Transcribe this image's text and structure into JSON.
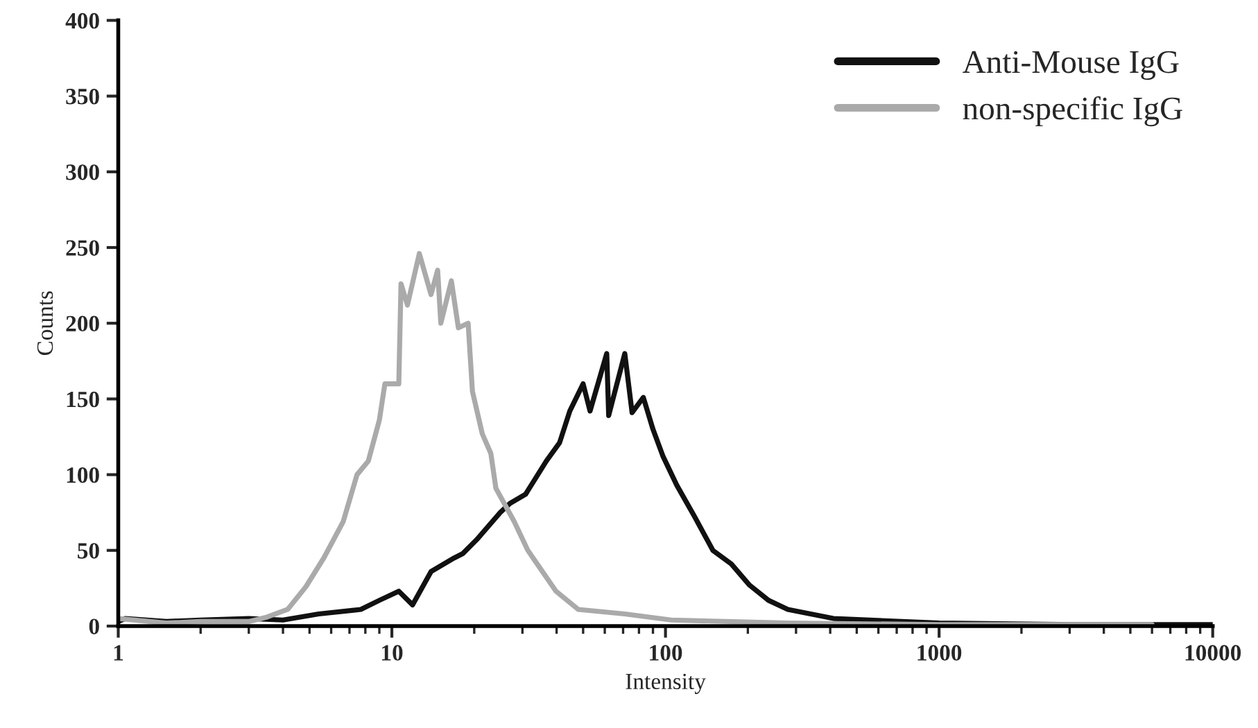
{
  "chart_data": {
    "type": "line",
    "xlabel": "Intensity",
    "ylabel": "Counts",
    "log": "x",
    "legend": "top right",
    "grid": false,
    "xlim": [
      1,
      10000
    ],
    "xticks": [
      1,
      10,
      100,
      1000,
      10000
    ],
    "ylim": [
      0,
      400
    ],
    "yticks": [
      0,
      50,
      100,
      150,
      200,
      250,
      300,
      350,
      400
    ],
    "series": [
      {
        "name": "Anti-Mouse IgG",
        "color": "#111111",
        "x": [
          1,
          1.06,
          1.5,
          2,
          3,
          4,
          5.4,
          7.7,
          9,
          10.6,
          11.9,
          13.9,
          16.9,
          18.2,
          20.4,
          24.9,
          27,
          30.8,
          36.7,
          41,
          44.7,
          50,
          53,
          61,
          62,
          71,
          75.5,
          83,
          90,
          98,
          110,
          128,
          149,
          174,
          203,
          238,
          280,
          411,
          1000,
          3000,
          10000
        ],
        "values": [
          3,
          5,
          3,
          4,
          5,
          4,
          8,
          11,
          17,
          23,
          14,
          36,
          45,
          48,
          57,
          75,
          81,
          87,
          109,
          121,
          142,
          160,
          142,
          180,
          139,
          180,
          141,
          151,
          130,
          112,
          93,
          72,
          50,
          41,
          27,
          17,
          11,
          5,
          2,
          1,
          1
        ]
      },
      {
        "name": "non-specific IgG",
        "color": "#aaaaaa",
        "x": [
          1,
          1.5,
          2,
          3,
          3.5,
          4.16,
          4.85,
          5.64,
          6.64,
          7.46,
          8.2,
          9,
          9.43,
          10.6,
          10.8,
          11.4,
          12.6,
          13.9,
          14.7,
          15.1,
          16.5,
          17.5,
          19,
          19.7,
          21.4,
          23,
          24,
          28,
          31.4,
          39.8,
          48,
          71,
          105,
          280,
          1000,
          3000,
          6000
        ],
        "values": [
          5,
          2,
          3,
          3,
          6,
          11,
          26,
          45,
          69,
          100,
          109,
          136,
          160,
          160,
          226,
          212,
          246,
          219,
          235,
          200,
          228,
          197,
          200,
          155,
          127,
          114,
          91,
          69,
          50,
          23,
          11,
          8,
          4,
          2,
          1,
          1,
          1
        ]
      }
    ]
  }
}
